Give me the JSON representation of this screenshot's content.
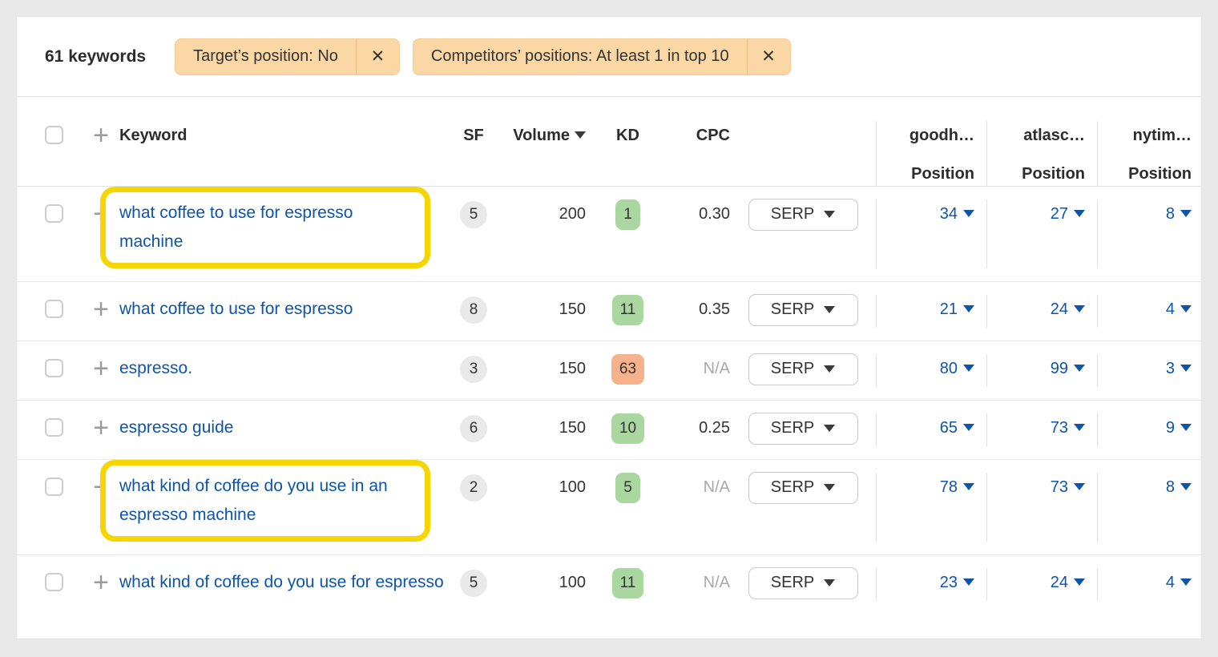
{
  "icons": {
    "plus": "+",
    "close": "✕",
    "sort": "triangle-down"
  },
  "colors": {
    "page_background": "#e9e9ea",
    "card_background": "#ffffff",
    "filter_chip_background": "#fad7a5",
    "link_blue": "#0d54aa",
    "highlight_yellow": "#f5d502",
    "kd_green": "#aad6a0",
    "kd_orange": "#f6b28a",
    "badge_gray": "#e9e9e9"
  },
  "toolbar": {
    "count_label": "61 keywords",
    "filters": [
      {
        "label": "Target’s position: No"
      },
      {
        "label": "Competitors’ positions: At least 1 in top 10"
      }
    ]
  },
  "table": {
    "headers": {
      "keyword": "Keyword",
      "sf": "SF",
      "volume": "Volume",
      "kd": "KD",
      "cpc": "CPC"
    },
    "competitors": [
      {
        "name": "goodh…",
        "sub": "Position"
      },
      {
        "name": "atlasc…",
        "sub": "Position"
      },
      {
        "name": "nytim…",
        "sub": "Position"
      }
    ],
    "serp_label": "SERP",
    "rows": [
      {
        "keyword": "what coffee to use for espresso machine",
        "highlighted": true,
        "sf": "5",
        "volume": "200",
        "kd": "1",
        "kd_level": "green",
        "cpc": "0.30",
        "cpc_na": false,
        "positions": [
          "34",
          "27",
          "8"
        ]
      },
      {
        "keyword": "what coffee to use for espresso",
        "highlighted": false,
        "sf": "8",
        "volume": "150",
        "kd": "11",
        "kd_level": "green",
        "cpc": "0.35",
        "cpc_na": false,
        "positions": [
          "21",
          "24",
          "4"
        ]
      },
      {
        "keyword": "espresso.",
        "highlighted": false,
        "sf": "3",
        "volume": "150",
        "kd": "63",
        "kd_level": "orange",
        "cpc": "N/A",
        "cpc_na": true,
        "positions": [
          "80",
          "99",
          "3"
        ]
      },
      {
        "keyword": "espresso guide",
        "highlighted": false,
        "sf": "6",
        "volume": "150",
        "kd": "10",
        "kd_level": "green",
        "cpc": "0.25",
        "cpc_na": false,
        "positions": [
          "65",
          "73",
          "9"
        ]
      },
      {
        "keyword": "what kind of coffee do you use in an espresso machine",
        "highlighted": true,
        "sf": "2",
        "volume": "100",
        "kd": "5",
        "kd_level": "green",
        "cpc": "N/A",
        "cpc_na": true,
        "positions": [
          "78",
          "73",
          "8"
        ]
      },
      {
        "keyword": "what kind of coffee do you use for espresso",
        "highlighted": false,
        "sf": "5",
        "volume": "100",
        "kd": "11",
        "kd_level": "green",
        "cpc": "N/A",
        "cpc_na": true,
        "positions": [
          "23",
          "24",
          "4"
        ]
      }
    ]
  }
}
